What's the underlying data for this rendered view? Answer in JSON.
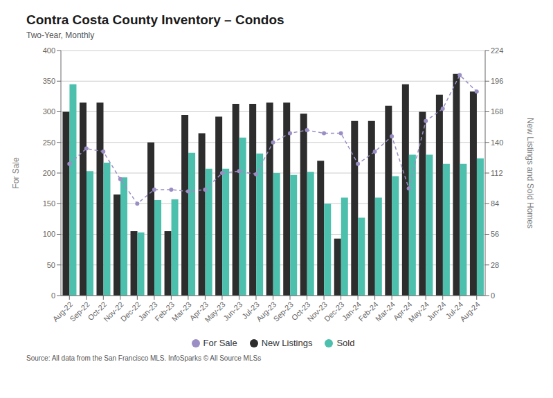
{
  "chart_data": {
    "type": "bar",
    "title": "Contra Costa County Inventory – Condos",
    "subtitle": "Two-Year, Monthly",
    "source": "Source:  All data from the San Francisco MLS. InfoSparks © All Source MLSs",
    "ylabel": "For Sale",
    "y2label": "New Listings and Sold Homes",
    "categories": [
      "Aug-22",
      "Sep-22",
      "Oct-22",
      "Nov-22",
      "Dec-22",
      "Jan-23",
      "Feb-23",
      "Mar-23",
      "Apr-23",
      "May-23",
      "Jun-23",
      "Jul-23",
      "Aug-23",
      "Sep-23",
      "Oct-23",
      "Nov-23",
      "Dec-23",
      "Jan-24",
      "Feb-24",
      "Mar-24",
      "Apr-24",
      "May-24",
      "Jun-24",
      "Jul-24",
      "Aug-24"
    ],
    "series": [
      {
        "name": "For Sale",
        "type": "line",
        "color": "#9b8ec4",
        "marker": "o",
        "line_style": "dashed",
        "values": [
          215,
          240,
          235,
          190,
          150,
          173,
          173,
          170,
          173,
          200,
          203,
          198,
          250,
          265,
          270,
          265,
          265,
          215,
          235,
          260,
          175,
          285,
          305,
          360,
          333
        ]
      },
      {
        "name": "New Listings",
        "type": "bar",
        "color": "#2d2d2d",
        "values": [
          300,
          315,
          315,
          165,
          105,
          250,
          105,
          295,
          265,
          292,
          313,
          313,
          315,
          315,
          297,
          220,
          93,
          285,
          285,
          310,
          345,
          300,
          328,
          362,
          333
        ]
      },
      {
        "name": "Sold",
        "type": "bar",
        "color": "#4cbfad",
        "values": [
          345,
          203,
          217,
          193,
          103,
          156,
          157,
          233,
          207,
          207,
          258,
          232,
          200,
          197,
          202,
          150,
          160,
          127,
          160,
          195,
          230,
          230,
          215,
          215,
          224
        ]
      }
    ],
    "ylim": [
      0,
      400
    ],
    "yticks": [
      0,
      50,
      100,
      150,
      200,
      250,
      300,
      350,
      400
    ],
    "y2lim": [
      0,
      224
    ],
    "y2ticks": [
      0,
      28,
      56,
      84,
      112,
      140,
      168,
      196,
      224
    ],
    "grid": true,
    "legend": "bottom"
  }
}
